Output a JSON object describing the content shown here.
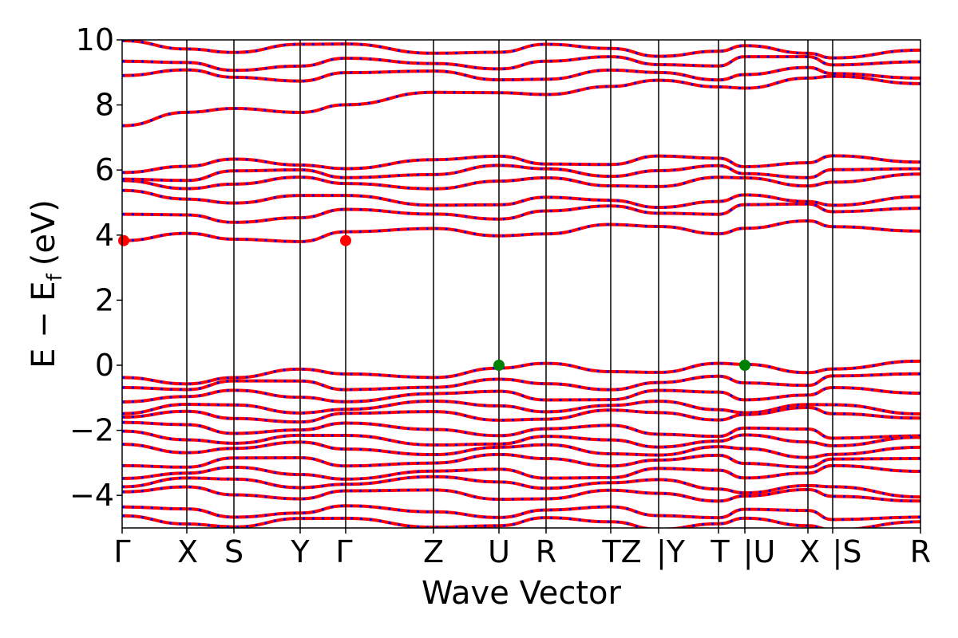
{
  "chart_data": {
    "type": "line",
    "subtype": "electronic-band-structure",
    "xlabel": "Wave Vector",
    "ylabel": "E − E",
    "ylabel_subscript": "f",
    "ylabel_unit": "(eV)",
    "ylim": [
      -5,
      10
    ],
    "yticks": [
      -4,
      -2,
      0,
      2,
      4,
      6,
      8,
      10
    ],
    "ytick_labels": [
      "−4",
      "−2",
      "0",
      "2",
      "4",
      "6",
      "8",
      "10"
    ],
    "grid": false,
    "k_path_labels": [
      "Γ",
      "X",
      "S",
      "Y",
      "Γ",
      "Z",
      "U",
      "R",
      "TZ",
      "|Y",
      "T",
      "|U",
      "X",
      "|S",
      "R"
    ],
    "segment_breaks_after_label": [
      8,
      11,
      13
    ],
    "line_colors": {
      "band": "#ff0000",
      "overlay_dash": "#0000ff"
    },
    "vbm_markers": [
      {
        "k_label": "U",
        "energy": 0.0,
        "color": "#008000"
      },
      {
        "k_label": "|U",
        "energy": 0.0,
        "color": "#008000"
      }
    ],
    "cbm_markers": [
      {
        "k_label": "Γ",
        "energy": 3.83,
        "color": "#ff0000"
      },
      {
        "k_label": "Γ",
        "energy": 3.83,
        "color": "#ff0000",
        "path_index": 4
      }
    ],
    "valence_band_maximum": 0.0,
    "conduction_band_minimum": 3.83,
    "bands": [
      {
        "name": "cb1",
        "e_start": 3.83,
        "e_mid": 4.15,
        "e_end": 4.3
      },
      {
        "name": "cb2",
        "e_start": 4.5,
        "e_mid": 4.7,
        "e_end": 4.9
      },
      {
        "name": "cb3",
        "e_start": 5.2,
        "e_mid": 5.0,
        "e_end": 5.1
      },
      {
        "name": "cb4",
        "e_start": 5.6,
        "e_mid": 5.6,
        "e_end": 5.7
      },
      {
        "name": "cb5",
        "e_start": 5.8,
        "e_mid": 6.0,
        "e_end": 5.9
      },
      {
        "name": "cb6",
        "e_start": 6.1,
        "e_mid": 6.3,
        "e_end": 6.25
      },
      {
        "name": "cb7",
        "e_start": 7.5,
        "e_mid": 8.5,
        "e_end": 8.8
      },
      {
        "name": "cb8",
        "e_start": 8.9,
        "e_mid": 8.9,
        "e_end": 9.0
      },
      {
        "name": "cb9",
        "e_start": 9.2,
        "e_mid": 9.3,
        "e_end": 9.4
      },
      {
        "name": "cb10",
        "e_start": 9.8,
        "e_mid": 9.7,
        "e_end": 9.6
      },
      {
        "name": "vb1",
        "e_start": -0.45,
        "e_mid": -0.1,
        "e_end": -0.05
      },
      {
        "name": "vb2",
        "e_start": -0.6,
        "e_mid": -0.6,
        "e_end": -0.4
      },
      {
        "name": "vb3",
        "e_start": -0.95,
        "e_mid": -0.95,
        "e_end": -0.85
      },
      {
        "name": "vb4",
        "e_start": -1.35,
        "e_mid": -1.25,
        "e_end": -1.35
      },
      {
        "name": "vb5",
        "e_start": -1.6,
        "e_mid": -1.55,
        "e_end": -1.45
      },
      {
        "name": "vb6",
        "e_start": -1.9,
        "e_mid": -2.0,
        "e_end": -2.1
      },
      {
        "name": "vb7",
        "e_start": -2.2,
        "e_mid": -2.35,
        "e_end": -2.3
      },
      {
        "name": "vb8",
        "e_start": -2.5,
        "e_mid": -2.6,
        "e_end": -2.7
      },
      {
        "name": "vb9",
        "e_start": -3.0,
        "e_mid": -2.9,
        "e_end": -3.0
      },
      {
        "name": "vb10",
        "e_start": -3.3,
        "e_mid": -3.35,
        "e_end": -3.25
      },
      {
        "name": "vb11",
        "e_start": -3.6,
        "e_mid": -3.6,
        "e_end": -3.9
      },
      {
        "name": "vb12",
        "e_start": -3.9,
        "e_mid": -4.0,
        "e_end": -4.0
      },
      {
        "name": "vb13",
        "e_start": -4.5,
        "e_mid": -4.5,
        "e_end": -4.6
      },
      {
        "name": "vb14",
        "e_start": -4.8,
        "e_mid": -4.85,
        "e_end": -4.9
      }
    ]
  }
}
